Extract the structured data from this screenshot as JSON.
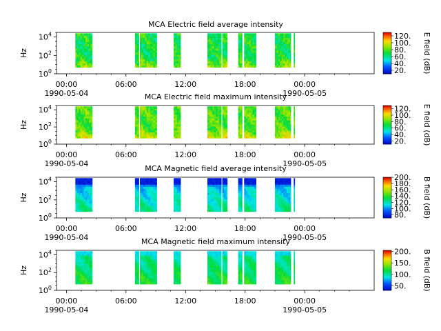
{
  "chart_data": [
    {
      "type": "heatmap",
      "title": "MCA  Electric field average intensity",
      "ylabel": "Hz",
      "colorbar_label": "E field (dB)",
      "yticks": [
        "10^0",
        "10^2",
        "10^4"
      ],
      "xticks": [
        "00:00",
        "06:00",
        "12:00",
        "18:00",
        "00:00"
      ],
      "xdates": [
        "1990-05-04",
        "1990-05-05"
      ],
      "cbar_ticks": [
        "20.",
        "40.",
        "60.",
        "80.",
        "100.",
        "120."
      ],
      "cbar_range": [
        10,
        130
      ],
      "colormap": "rainbow",
      "palette": "e",
      "x_range_hours": [
        -1,
        31
      ],
      "y_range_log10": [
        0,
        4.5
      ],
      "data_segments_hours": [
        [
          0.9,
          2.6
        ],
        [
          6.9,
          7.3
        ],
        [
          7.4,
          9.1
        ],
        [
          10.8,
          11.5
        ],
        [
          14.2,
          15.6
        ],
        [
          15.7,
          16.2
        ],
        [
          17.3,
          17.7
        ],
        [
          17.9,
          19.1
        ],
        [
          21.0,
          22.6
        ],
        [
          22.9,
          23.0
        ]
      ],
      "freq_range_log10": [
        0.7,
        4.4
      ]
    },
    {
      "type": "heatmap",
      "title": "MCA  Electric field maximum intensity",
      "ylabel": "Hz",
      "colorbar_label": "E field (dB)",
      "yticks": [
        "10^0",
        "10^2",
        "10^4"
      ],
      "xticks": [
        "00:00",
        "06:00",
        "12:00",
        "18:00",
        "00:00"
      ],
      "xdates": [
        "1990-05-04",
        "1990-05-05"
      ],
      "cbar_ticks": [
        "20.",
        "40.",
        "60.",
        "80.",
        "100.",
        "120."
      ],
      "cbar_range": [
        10,
        130
      ],
      "colormap": "rainbow",
      "palette": "emax",
      "x_range_hours": [
        -1,
        31
      ],
      "y_range_log10": [
        0,
        4.5
      ],
      "data_segments_hours": [
        [
          0.9,
          2.6
        ],
        [
          6.9,
          7.3
        ],
        [
          7.4,
          9.1
        ],
        [
          10.8,
          11.5
        ],
        [
          14.2,
          15.6
        ],
        [
          15.7,
          16.2
        ],
        [
          17.3,
          17.7
        ],
        [
          17.9,
          19.1
        ],
        [
          21.0,
          22.6
        ],
        [
          22.9,
          23.0
        ]
      ],
      "freq_range_log10": [
        0.7,
        4.4
      ]
    },
    {
      "type": "heatmap",
      "title": "MCA  Magnetic field average intensity",
      "ylabel": "Hz",
      "colorbar_label": "B field (dB)",
      "yticks": [
        "10^0",
        "10^2",
        "10^4"
      ],
      "xticks": [
        "00:00",
        "06:00",
        "12:00",
        "18:00",
        "00:00"
      ],
      "xdates": [
        "1990-05-04",
        "1990-05-05"
      ],
      "cbar_ticks": [
        "80.",
        "100.",
        "120.",
        "140.",
        "160.",
        "180.",
        "200."
      ],
      "cbar_range": [
        70,
        200
      ],
      "colormap": "rainbow",
      "palette": "b",
      "x_range_hours": [
        -1,
        31
      ],
      "y_range_log10": [
        0,
        4.5
      ],
      "data_segments_hours": [
        [
          0.9,
          2.6
        ],
        [
          6.9,
          7.3
        ],
        [
          7.4,
          9.1
        ],
        [
          10.8,
          11.5
        ],
        [
          14.2,
          15.6
        ],
        [
          15.7,
          16.2
        ],
        [
          17.3,
          17.7
        ],
        [
          17.9,
          19.1
        ],
        [
          21.0,
          22.6
        ],
        [
          22.9,
          23.0
        ]
      ],
      "freq_range_log10": [
        0.7,
        4.4
      ]
    },
    {
      "type": "heatmap",
      "title": "MCA  Magnetic field maximum intensity",
      "ylabel": "Hz",
      "colorbar_label": "B field (dB)",
      "yticks": [
        "10^0",
        "10^2",
        "10^4"
      ],
      "xticks": [
        "00:00",
        "06:00",
        "12:00",
        "18:00",
        "00:00"
      ],
      "xdates": [
        "1990-05-04",
        "1990-05-05"
      ],
      "cbar_ticks": [
        "50.",
        "100.",
        "150.",
        "200."
      ],
      "cbar_range": [
        30,
        205
      ],
      "colormap": "rainbow",
      "palette": "bmax",
      "x_range_hours": [
        -1,
        31
      ],
      "y_range_log10": [
        0,
        4.5
      ],
      "data_segments_hours": [
        [
          0.9,
          2.6
        ],
        [
          6.9,
          7.3
        ],
        [
          7.4,
          9.1
        ],
        [
          10.8,
          11.5
        ],
        [
          14.2,
          15.6
        ],
        [
          15.7,
          16.2
        ],
        [
          17.3,
          17.7
        ],
        [
          17.9,
          19.1
        ],
        [
          21.0,
          22.6
        ],
        [
          22.9,
          23.0
        ]
      ],
      "freq_range_log10": [
        0.7,
        4.4
      ]
    }
  ]
}
